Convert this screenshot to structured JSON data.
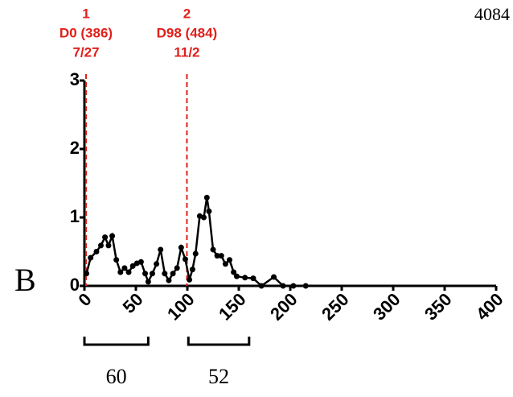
{
  "chart_data": {
    "type": "line",
    "corner_label": "4084",
    "panel_label": "B",
    "color": "#000000",
    "x": [
      2,
      6,
      11.7,
      16,
      20,
      23.4,
      27,
      31,
      35,
      39,
      43,
      47,
      51,
      55,
      59,
      62,
      66,
      70,
      74,
      78,
      82,
      86,
      90,
      94,
      98,
      102,
      105,
      108,
      112,
      116,
      119,
      121,
      125,
      129,
      133,
      137,
      141,
      145,
      148,
      156,
      164,
      172,
      184,
      193,
      203,
      215
    ],
    "values": [
      0.18,
      0.41,
      0.5,
      0.59,
      0.71,
      0.59,
      0.73,
      0.38,
      0.2,
      0.26,
      0.2,
      0.29,
      0.33,
      0.35,
      0.18,
      0.06,
      0.18,
      0.32,
      0.53,
      0.18,
      0.08,
      0.18,
      0.26,
      0.56,
      0.39,
      0.09,
      0.24,
      0.47,
      1.02,
      1.0,
      1.29,
      1.09,
      0.53,
      0.44,
      0.44,
      0.32,
      0.38,
      0.2,
      0.14,
      0.12,
      0.11,
      0,
      0.13,
      0,
      0,
      0
    ],
    "xlim": [
      0,
      400
    ],
    "xticks": [
      0,
      50,
      100,
      150,
      200,
      250,
      300,
      350,
      400
    ],
    "ylim": [
      0,
      3
    ],
    "yticks": [
      0,
      1,
      2,
      3
    ],
    "markers": [
      {
        "x": 0,
        "lines": [
          "1",
          "D0 (386)",
          "7/27"
        ]
      },
      {
        "x": 98,
        "lines": [
          "2",
          "D98 (484)",
          "11/2"
        ]
      }
    ],
    "marker_color": "#e0201b",
    "brackets": [
      {
        "range": [
          0,
          62
        ],
        "label": "60"
      },
      {
        "range": [
          101,
          160
        ],
        "label": "52"
      }
    ]
  }
}
